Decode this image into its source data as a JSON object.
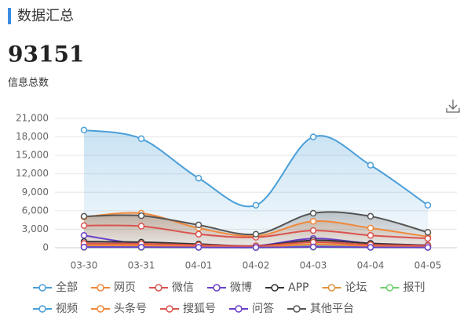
{
  "header": {
    "title": "数据汇总",
    "total": 93151,
    "total_label": "信息总数"
  },
  "chart_data": {
    "type": "line",
    "smooth": true,
    "grid": true,
    "categories": [
      "03-30",
      "03-31",
      "04-01",
      "04-02",
      "04-03",
      "04-04",
      "04-05"
    ],
    "ylim": [
      0,
      21000
    ],
    "yticks": [
      {
        "value": 0,
        "label": "0"
      },
      {
        "value": 3000,
        "label": "3,000"
      },
      {
        "value": 6000,
        "label": "6,000"
      },
      {
        "value": 9000,
        "label": "9,000"
      },
      {
        "value": 12000,
        "label": "12,000"
      },
      {
        "value": 15000,
        "label": "15,000"
      },
      {
        "value": 18000,
        "label": "18,000"
      },
      {
        "value": 21000,
        "label": "21,000"
      }
    ],
    "series": [
      {
        "name": "全部",
        "color": "#4a9fd8",
        "area": true,
        "values": [
          19100,
          17700,
          11300,
          6900,
          18000,
          13400,
          6900
        ]
      },
      {
        "name": "网页",
        "color": "#f0883a",
        "area": true,
        "values": [
          5000,
          5600,
          3200,
          1900,
          4300,
          3200,
          1800
        ]
      },
      {
        "name": "微信",
        "color": "#d9534f",
        "values": [
          3600,
          3500,
          2200,
          1700,
          2800,
          2000,
          1500
        ]
      },
      {
        "name": "微博",
        "color": "#6a3fc7",
        "values": [
          2000,
          600,
          400,
          300,
          1500,
          700,
          400
        ]
      },
      {
        "name": "APP",
        "color": "#333333",
        "values": [
          1000,
          900,
          600,
          300,
          1200,
          700,
          400
        ]
      },
      {
        "name": "论坛",
        "color": "#e0933a",
        "values": [
          500,
          450,
          300,
          200,
          600,
          400,
          250
        ]
      },
      {
        "name": "报刊",
        "color": "#6fcf6f",
        "values": [
          50,
          40,
          30,
          20,
          60,
          40,
          30
        ]
      },
      {
        "name": "视频",
        "color": "#4a9fd8",
        "values": [
          200,
          180,
          120,
          80,
          250,
          150,
          100
        ]
      },
      {
        "name": "头条号",
        "color": "#f0883a",
        "values": [
          400,
          350,
          250,
          150,
          500,
          300,
          200
        ]
      },
      {
        "name": "搜狐号",
        "color": "#d9534f",
        "values": [
          700,
          650,
          450,
          300,
          900,
          500,
          350
        ]
      },
      {
        "name": "问答",
        "color": "#6a3fc7",
        "values": [
          100,
          90,
          60,
          40,
          120,
          70,
          50
        ]
      },
      {
        "name": "其他平台",
        "color": "#555555",
        "area": true,
        "values": [
          5100,
          5200,
          3700,
          2200,
          5600,
          5100,
          2500
        ]
      }
    ]
  }
}
